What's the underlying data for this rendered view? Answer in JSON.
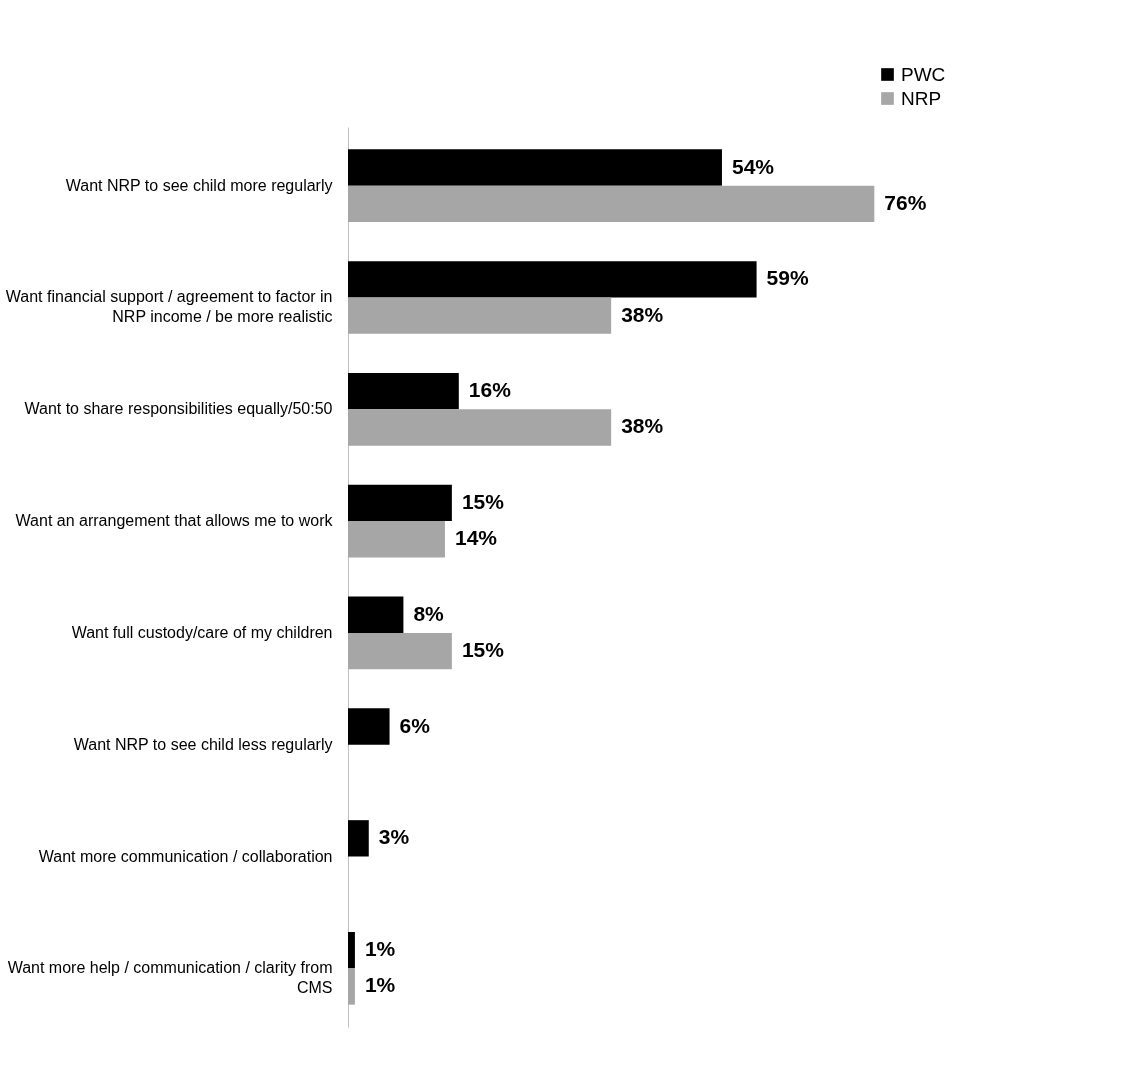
{
  "chart_data": {
    "type": "bar",
    "orientation": "horizontal",
    "legend": "top right",
    "grid": false,
    "categories": [
      "Want NRP to see child more regularly",
      "Want financial support / agreement to factor in NRP income / be more realistic",
      "Want to share responsibilities equally/50:50",
      "Want an arrangement that allows me to work",
      "Want full custody/care of my children",
      "Want NRP to see child less regularly",
      "Want more communication / collaboration",
      "Want more help / communication / clarity from CMS"
    ],
    "series": [
      {
        "name": "PWC",
        "color": "#000000",
        "values": [
          54,
          59,
          16,
          15,
          8,
          6,
          3,
          1
        ],
        "value_labels": [
          "54%",
          "59%",
          "16%",
          "15%",
          "8%",
          "6%",
          "3%",
          "1%"
        ]
      },
      {
        "name": "NRP",
        "color": "#a6a6a6",
        "values": [
          76,
          38,
          38,
          14,
          15,
          null,
          null,
          1
        ],
        "value_labels": [
          "76%",
          "38%",
          "38%",
          "14%",
          "15%",
          null,
          null,
          "1%"
        ]
      }
    ]
  }
}
